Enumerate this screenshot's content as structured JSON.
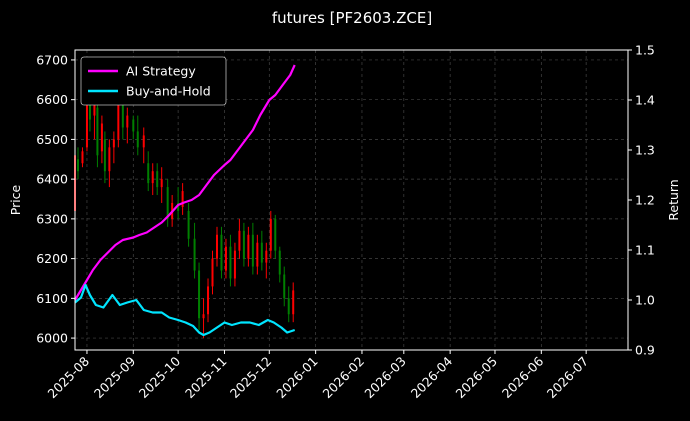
{
  "chart_data": {
    "type": "line",
    "title": "futures [PF2603.ZCE]",
    "ylabel": "Price",
    "ylabel_right": "Return",
    "ylim": [
      5970,
      6725
    ],
    "ylim_right": [
      0.9,
      1.5
    ],
    "yticks": [
      6000,
      6100,
      6200,
      6300,
      6400,
      6500,
      6600,
      6700
    ],
    "yticks_right": [
      "0.9",
      "1.0",
      "1.1",
      "1.2",
      "1.3",
      "1.4",
      "1.5"
    ],
    "xlim": [
      "2025-07-24",
      "2026-07-29"
    ],
    "xticks": [
      "2025-08",
      "2025-09",
      "2025-10",
      "2025-11",
      "2025-12",
      "2026-01",
      "2026-02",
      "2026-03",
      "2026-04",
      "2026-05",
      "2026-06",
      "2026-07"
    ],
    "grid": true,
    "legend_position": "top-left",
    "colors": {
      "background": "#000000",
      "up": "#ff0000",
      "down": "#008000",
      "ai": "#ff00ff",
      "bh": "#00e5ff",
      "grid": "#444444"
    },
    "series": [
      {
        "name": "AI Strategy",
        "x": [
          "2025-07-24",
          "2025-07-28",
          "2025-08-01",
          "2025-08-05",
          "2025-08-10",
          "2025-08-15",
          "2025-08-20",
          "2025-08-25",
          "2025-09-01",
          "2025-09-05",
          "2025-09-10",
          "2025-09-15",
          "2025-09-20",
          "2025-09-25",
          "2025-10-01",
          "2025-10-05",
          "2025-10-10",
          "2025-10-15",
          "2025-10-20",
          "2025-10-25",
          "2025-11-01",
          "2025-11-05",
          "2025-11-10",
          "2025-11-15",
          "2025-11-20",
          "2025-11-25",
          "2025-12-01",
          "2025-12-05",
          "2025-12-10",
          "2025-12-15",
          "2025-12-18"
        ],
        "values": [
          1.0,
          1.02,
          1.04,
          1.06,
          1.08,
          1.095,
          1.11,
          1.12,
          1.125,
          1.13,
          1.135,
          1.145,
          1.155,
          1.17,
          1.19,
          1.195,
          1.2,
          1.21,
          1.23,
          1.25,
          1.27,
          1.28,
          1.3,
          1.32,
          1.34,
          1.37,
          1.4,
          1.41,
          1.43,
          1.45,
          1.47
        ]
      },
      {
        "name": "Buy-and-Hold",
        "x": [
          "2025-07-24",
          "2025-07-28",
          "2025-07-31",
          "2025-08-03",
          "2025-08-07",
          "2025-08-12",
          "2025-08-18",
          "2025-08-23",
          "2025-08-28",
          "2025-09-03",
          "2025-09-08",
          "2025-09-14",
          "2025-09-20",
          "2025-09-25",
          "2025-10-01",
          "2025-10-06",
          "2025-10-11",
          "2025-10-15",
          "2025-10-18",
          "2025-10-22",
          "2025-10-27",
          "2025-11-01",
          "2025-11-06",
          "2025-11-12",
          "2025-11-18",
          "2025-11-24",
          "2025-11-30",
          "2025-12-04",
          "2025-12-09",
          "2025-12-13",
          "2025-12-18"
        ],
        "values": [
          0.995,
          1.005,
          1.03,
          1.01,
          0.99,
          0.985,
          1.01,
          0.99,
          0.995,
          1.0,
          0.98,
          0.975,
          0.975,
          0.965,
          0.96,
          0.955,
          0.948,
          0.935,
          0.93,
          0.935,
          0.945,
          0.955,
          0.95,
          0.955,
          0.955,
          0.95,
          0.96,
          0.955,
          0.945,
          0.935,
          0.94
        ]
      }
    ],
    "candles": [
      [
        "2025-07-24",
        6320,
        6500,
        6300,
        6460
      ],
      [
        "2025-07-26",
        6450,
        6480,
        6400,
        6420
      ],
      [
        "2025-07-29",
        6440,
        6480,
        6430,
        6470
      ],
      [
        "2025-08-01",
        6480,
        6680,
        6470,
        6640
      ],
      [
        "2025-08-03",
        6620,
        6640,
        6520,
        6550
      ],
      [
        "2025-08-06",
        6560,
        6620,
        6500,
        6600
      ],
      [
        "2025-08-08",
        6580,
        6590,
        6430,
        6460
      ],
      [
        "2025-08-11",
        6470,
        6560,
        6440,
        6540
      ],
      [
        "2025-08-13",
        6500,
        6520,
        6390,
        6420
      ],
      [
        "2025-08-16",
        6420,
        6500,
        6380,
        6480
      ],
      [
        "2025-08-19",
        6480,
        6520,
        6440,
        6500
      ],
      [
        "2025-08-22",
        6500,
        6700,
        6480,
        6630
      ],
      [
        "2025-08-25",
        6600,
        6620,
        6500,
        6530
      ],
      [
        "2025-08-28",
        6530,
        6580,
        6490,
        6560
      ],
      [
        "2025-09-01",
        6550,
        6560,
        6500,
        6520
      ],
      [
        "2025-09-04",
        6520,
        6560,
        6460,
        6480
      ],
      [
        "2025-09-08",
        6480,
        6530,
        6440,
        6510
      ],
      [
        "2025-09-11",
        6440,
        6470,
        6370,
        6390
      ],
      [
        "2025-09-14",
        6390,
        6440,
        6360,
        6420
      ],
      [
        "2025-09-17",
        6420,
        6440,
        6360,
        6380
      ],
      [
        "2025-09-20",
        6380,
        6430,
        6340,
        6400
      ],
      [
        "2025-09-24",
        6380,
        6400,
        6280,
        6300
      ],
      [
        "2025-09-27",
        6300,
        6360,
        6280,
        6340
      ],
      [
        "2025-10-01",
        6340,
        6380,
        6300,
        6320
      ],
      [
        "2025-10-04",
        6330,
        6390,
        6310,
        6370
      ],
      [
        "2025-10-08",
        6320,
        6340,
        6230,
        6250
      ],
      [
        "2025-10-12",
        6250,
        6290,
        6150,
        6170
      ],
      [
        "2025-10-15",
        6170,
        6190,
        6020,
        6050
      ],
      [
        "2025-10-18",
        6050,
        6100,
        6000,
        6060
      ],
      [
        "2025-10-21",
        6060,
        6150,
        6040,
        6130
      ],
      [
        "2025-10-24",
        6130,
        6220,
        6110,
        6200
      ],
      [
        "2025-10-27",
        6200,
        6280,
        6180,
        6260
      ],
      [
        "2025-10-30",
        6260,
        6280,
        6150,
        6170
      ],
      [
        "2025-11-02",
        6170,
        6250,
        6150,
        6230
      ],
      [
        "2025-11-05",
        6230,
        6260,
        6130,
        6150
      ],
      [
        "2025-11-08",
        6150,
        6240,
        6130,
        6220
      ],
      [
        "2025-11-11",
        6220,
        6300,
        6200,
        6270
      ],
      [
        "2025-11-14",
        6270,
        6290,
        6180,
        6200
      ],
      [
        "2025-11-17",
        6200,
        6280,
        6180,
        6260
      ],
      [
        "2025-11-20",
        6260,
        6290,
        6160,
        6180
      ],
      [
        "2025-11-23",
        6180,
        6260,
        6160,
        6240
      ],
      [
        "2025-11-26",
        6240,
        6270,
        6170,
        6190
      ],
      [
        "2025-11-29",
        6190,
        6240,
        6150,
        6220
      ],
      [
        "2025-12-02",
        6220,
        6320,
        6200,
        6300
      ],
      [
        "2025-12-05",
        6300,
        6310,
        6200,
        6220
      ],
      [
        "2025-12-08",
        6220,
        6230,
        6140,
        6160
      ],
      [
        "2025-12-11",
        6160,
        6180,
        6080,
        6100
      ],
      [
        "2025-12-14",
        6100,
        6130,
        6040,
        6060
      ],
      [
        "2025-12-17",
        6060,
        6140,
        6040,
        6120
      ]
    ]
  }
}
